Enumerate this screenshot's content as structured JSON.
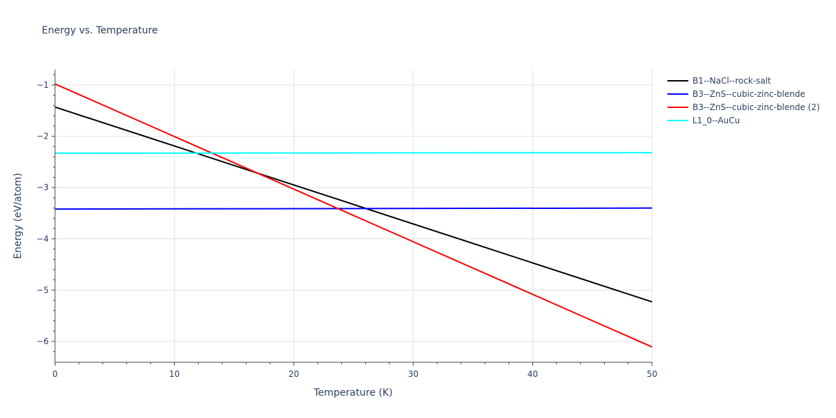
{
  "chart_data": {
    "type": "line",
    "title": "Energy vs. Temperature",
    "xlabel": "Temperature (K)",
    "ylabel": "Energy (eV/atom)",
    "xlim": [
      0,
      50
    ],
    "ylim": [
      -6.4,
      -0.7
    ],
    "xticks": [
      0,
      10,
      20,
      30,
      40,
      50
    ],
    "yticks": [
      -1,
      -2,
      -3,
      -4,
      -5,
      -6
    ],
    "grid": true,
    "legend_position": "right",
    "x": [
      0,
      50
    ],
    "series": [
      {
        "name": "B1--NaCl--rock-salt",
        "color": "#000000",
        "values": [
          -1.43,
          -5.23
        ]
      },
      {
        "name": "B3--ZnS--cubic-zinc-blende",
        "color": "#0000ff",
        "values": [
          -3.42,
          -3.4
        ]
      },
      {
        "name": "B3--ZnS--cubic-zinc-blende (2)",
        "color": "#ff0000",
        "values": [
          -0.98,
          -6.11
        ]
      },
      {
        "name": "L1_0--AuCu",
        "color": "#00ffff",
        "values": [
          -2.33,
          -2.32
        ]
      }
    ]
  },
  "labels": {
    "title": "Energy vs. Temperature",
    "xlabel": "Temperature (K)",
    "ylabel": "Energy (eV/atom)",
    "xtick_labels": [
      "0",
      "10",
      "20",
      "30",
      "40",
      "50"
    ],
    "ytick_labels": [
      "−1",
      "−2",
      "−3",
      "−4",
      "−5",
      "−6"
    ]
  },
  "legend": [
    {
      "label": "B1--NaCl--rock-salt",
      "color": "#000000"
    },
    {
      "label": "B3--ZnS--cubic-zinc-blende",
      "color": "#0000ff"
    },
    {
      "label": "B3--ZnS--cubic-zinc-blende (2)",
      "color": "#ff0000"
    },
    {
      "label": "L1_0--AuCu",
      "color": "#00ffff"
    }
  ]
}
